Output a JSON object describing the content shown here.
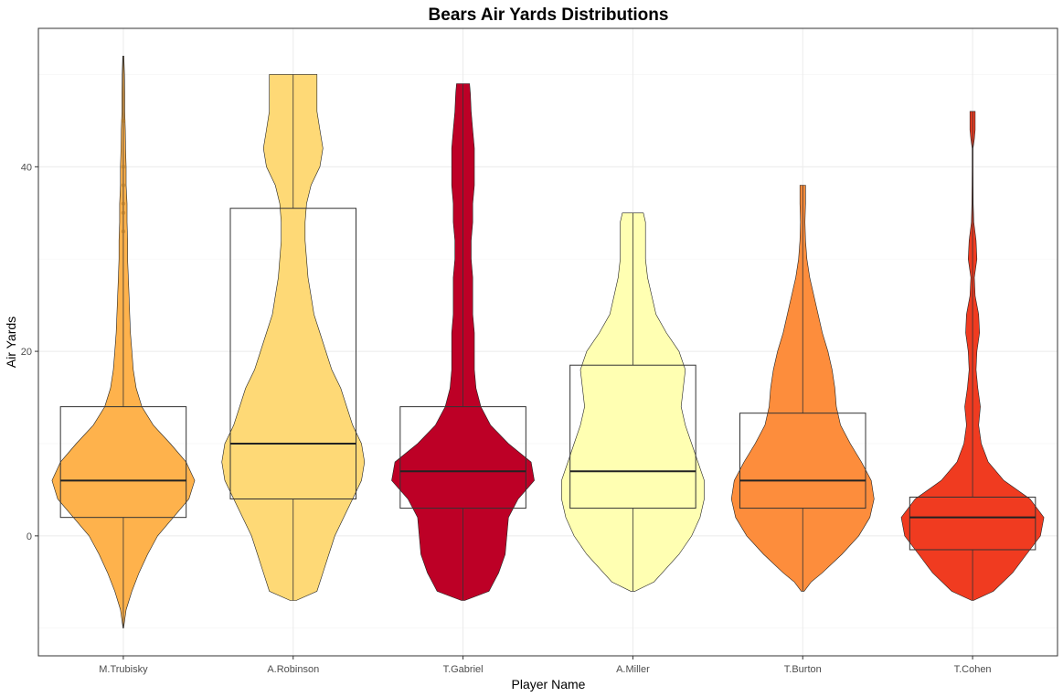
{
  "chart_data": {
    "type": "violin",
    "title": "Bears Air Yards Distributions",
    "xlabel": "Player Name",
    "ylabel": "Air Yards",
    "ylim": [
      -13,
      55
    ],
    "yticks": [
      0,
      20,
      40
    ],
    "grid": true,
    "legend": "none",
    "categories": [
      "M.Trubisky",
      "A.Robinson",
      "T.Gabriel",
      "A.Miller",
      "T.Burton",
      "T.Cohen"
    ],
    "series": [
      {
        "category": "M.Trubisky",
        "color": "#FEB24C",
        "box_color": "#FEB959",
        "min": -10,
        "q1": 2,
        "median": 6,
        "q3": 14,
        "max": 52,
        "outliers": [
          33,
          35,
          36,
          38,
          40,
          45
        ],
        "density": [
          [
            -10,
            0.2
          ],
          [
            -8,
            2
          ],
          [
            -6,
            6
          ],
          [
            -4,
            11
          ],
          [
            -2,
            17
          ],
          [
            0,
            24
          ],
          [
            2,
            35
          ],
          [
            4,
            46
          ],
          [
            6,
            50
          ],
          [
            8,
            44
          ],
          [
            10,
            33
          ],
          [
            12,
            21
          ],
          [
            14,
            13
          ],
          [
            16,
            9
          ],
          [
            18,
            7
          ],
          [
            20,
            6
          ],
          [
            22,
            5
          ],
          [
            24,
            4.5
          ],
          [
            26,
            4
          ],
          [
            28,
            3.5
          ],
          [
            30,
            3
          ],
          [
            32,
            3
          ],
          [
            34,
            2.6
          ],
          [
            36,
            2.6
          ],
          [
            38,
            2
          ],
          [
            40,
            2
          ],
          [
            42,
            1.6
          ],
          [
            44,
            1.4
          ],
          [
            46,
            1
          ],
          [
            48,
            1
          ],
          [
            50,
            0.8
          ],
          [
            52,
            0.4
          ]
        ]
      },
      {
        "category": "A.Robinson",
        "color": "#FED976",
        "box_color": "#FEDB7F",
        "min": -7,
        "q1": 4,
        "median": 10,
        "q3": 35.5,
        "max": 50,
        "outliers": [],
        "density": [
          [
            -7,
            1
          ],
          [
            -6,
            8
          ],
          [
            -4,
            10
          ],
          [
            -2,
            12
          ],
          [
            0,
            14
          ],
          [
            2,
            17
          ],
          [
            4,
            20
          ],
          [
            6,
            23
          ],
          [
            8,
            24
          ],
          [
            10,
            23
          ],
          [
            12,
            20
          ],
          [
            14,
            18
          ],
          [
            16,
            16
          ],
          [
            18,
            13
          ],
          [
            20,
            11
          ],
          [
            22,
            9
          ],
          [
            24,
            7
          ],
          [
            26,
            6
          ],
          [
            28,
            5
          ],
          [
            30,
            4.5
          ],
          [
            32,
            4
          ],
          [
            34,
            4
          ],
          [
            36,
            4.5
          ],
          [
            38,
            6
          ],
          [
            40,
            9
          ],
          [
            42,
            10
          ],
          [
            44,
            9
          ],
          [
            46,
            8
          ],
          [
            48,
            8
          ],
          [
            50,
            8
          ]
        ]
      },
      {
        "category": "T.Gabriel",
        "color": "#BD0026",
        "box_color": "#C51B3D",
        "min": -7,
        "q1": 3,
        "median": 7,
        "q3": 14,
        "max": 49,
        "outliers": [],
        "density": [
          [
            -7,
            1
          ],
          [
            -6,
            16
          ],
          [
            -4,
            22
          ],
          [
            -2,
            26
          ],
          [
            0,
            27
          ],
          [
            2,
            28
          ],
          [
            4,
            34
          ],
          [
            6,
            44
          ],
          [
            8,
            42
          ],
          [
            10,
            28
          ],
          [
            12,
            17
          ],
          [
            14,
            11
          ],
          [
            16,
            8
          ],
          [
            18,
            7
          ],
          [
            20,
            7
          ],
          [
            22,
            7
          ],
          [
            24,
            6
          ],
          [
            26,
            6
          ],
          [
            28,
            6
          ],
          [
            30,
            5
          ],
          [
            32,
            5
          ],
          [
            34,
            6
          ],
          [
            36,
            6
          ],
          [
            38,
            7
          ],
          [
            40,
            7
          ],
          [
            42,
            7
          ],
          [
            44,
            6
          ],
          [
            46,
            5
          ],
          [
            48,
            4.5
          ],
          [
            49,
            4
          ]
        ]
      },
      {
        "category": "A.Miller",
        "color": "#FFFFB2",
        "box_color": "#FFFFB8",
        "min": -6,
        "q1": 3,
        "median": 7,
        "q3": 18.5,
        "max": 35,
        "outliers": [],
        "density": [
          [
            -6,
            1
          ],
          [
            -5,
            10
          ],
          [
            -4,
            14
          ],
          [
            -2,
            22
          ],
          [
            0,
            28
          ],
          [
            2,
            32
          ],
          [
            4,
            34
          ],
          [
            6,
            34
          ],
          [
            8,
            31
          ],
          [
            10,
            28
          ],
          [
            12,
            25
          ],
          [
            14,
            23
          ],
          [
            16,
            24
          ],
          [
            18,
            25
          ],
          [
            20,
            22
          ],
          [
            22,
            16
          ],
          [
            24,
            11
          ],
          [
            26,
            9
          ],
          [
            28,
            7
          ],
          [
            30,
            6
          ],
          [
            32,
            6
          ],
          [
            34,
            6
          ],
          [
            35,
            5
          ]
        ]
      },
      {
        "category": "T.Burton",
        "color": "#FD8D3C",
        "box_color": "#FE9D52",
        "min": -6,
        "q1": 3,
        "median": 6,
        "q3": 13.3,
        "max": 38,
        "outliers": [],
        "density": [
          [
            -6,
            1
          ],
          [
            -5,
            6
          ],
          [
            -4,
            14
          ],
          [
            -2,
            28
          ],
          [
            0,
            40
          ],
          [
            2,
            48
          ],
          [
            4,
            51
          ],
          [
            6,
            49
          ],
          [
            8,
            42
          ],
          [
            10,
            34
          ],
          [
            12,
            27
          ],
          [
            14,
            24
          ],
          [
            16,
            23
          ],
          [
            18,
            21
          ],
          [
            20,
            18
          ],
          [
            22,
            14
          ],
          [
            24,
            11
          ],
          [
            26,
            8
          ],
          [
            28,
            5
          ],
          [
            30,
            3
          ],
          [
            32,
            2
          ],
          [
            34,
            1.6
          ],
          [
            36,
            2
          ],
          [
            38,
            2
          ]
        ]
      },
      {
        "category": "T.Cohen",
        "color": "#F03B20",
        "box_color": "#F04E32",
        "min": -7,
        "q1": -1.5,
        "median": 2,
        "q3": 4.2,
        "max": 46,
        "outliers": [],
        "density": [
          [
            -7,
            1
          ],
          [
            -6,
            24
          ],
          [
            -4,
            46
          ],
          [
            -2,
            62
          ],
          [
            0,
            78
          ],
          [
            2,
            82
          ],
          [
            4,
            66
          ],
          [
            6,
            36
          ],
          [
            8,
            18
          ],
          [
            10,
            10
          ],
          [
            12,
            7
          ],
          [
            14,
            9
          ],
          [
            16,
            6
          ],
          [
            18,
            4
          ],
          [
            20,
            5
          ],
          [
            22,
            8
          ],
          [
            24,
            7
          ],
          [
            26,
            3
          ],
          [
            28,
            2
          ],
          [
            30,
            5
          ],
          [
            32,
            4
          ],
          [
            34,
            1.4
          ],
          [
            36,
            0.8
          ],
          [
            38,
            0.6
          ],
          [
            40,
            0.5
          ],
          [
            42,
            0.5
          ],
          [
            43,
            2
          ],
          [
            44,
            3
          ],
          [
            46,
            3
          ]
        ]
      }
    ]
  }
}
